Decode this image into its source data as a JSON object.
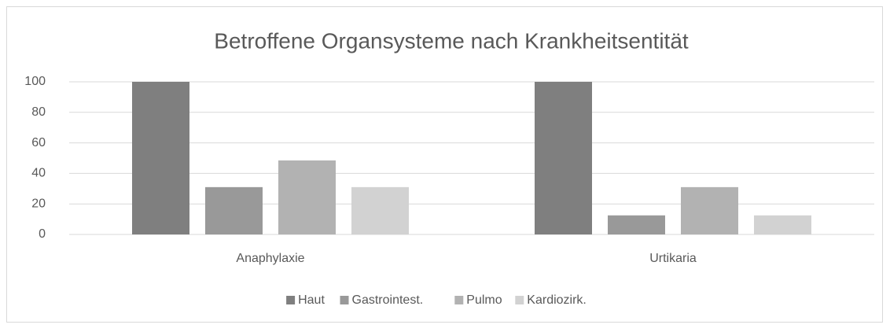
{
  "chart_data": {
    "type": "bar",
    "title": "Betroffene Organsysteme nach Krankheitsentität",
    "categories": [
      "Anaphylaxie",
      "Urtikaria"
    ],
    "series": [
      {
        "name": "Haut",
        "color": "#7f7f7f",
        "values": [
          100,
          100
        ]
      },
      {
        "name": "Gastrointest.",
        "color": "#999999",
        "values": [
          31,
          12.5
        ]
      },
      {
        "name": "Pulmo",
        "color": "#b2b2b2",
        "values": [
          48.5,
          31
        ]
      },
      {
        "name": "Kardiozirk.",
        "color": "#d2d2d2",
        "values": [
          31,
          12.5
        ]
      }
    ],
    "ylim": [
      0,
      100
    ],
    "yticks": [
      0,
      20,
      40,
      60,
      80,
      100
    ],
    "grid": true,
    "legend": "bottom"
  }
}
